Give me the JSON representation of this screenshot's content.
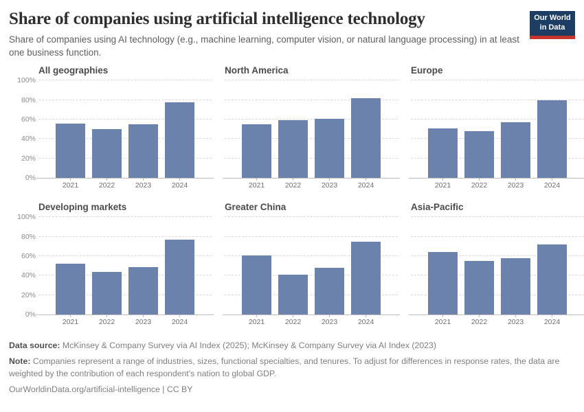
{
  "header": {
    "title": "Share of companies using artificial intelligence technology",
    "subtitle": "Share of companies using AI technology (e.g., machine learning, computer vision, or natural language processing) in at least one business function.",
    "logo": {
      "line1": "Our World",
      "line2": "in Data",
      "bg_color": "#1d3d63",
      "stripe_color": "#c5352c"
    }
  },
  "chart_data": {
    "type": "bar",
    "categories": [
      "2021",
      "2022",
      "2023",
      "2024"
    ],
    "ylim": [
      0,
      100
    ],
    "ytick_values": [
      0,
      20,
      40,
      60,
      80,
      100
    ],
    "ytick_labels": [
      "0%",
      "20%",
      "40%",
      "60%",
      "80%",
      "100%"
    ],
    "grid": true,
    "legend": "none",
    "bar_color": "#6b82ac",
    "ylabel": "",
    "xlabel": "",
    "panels": [
      {
        "title": "All geographies",
        "values": [
          56,
          50,
          55,
          78
        ]
      },
      {
        "title": "North America",
        "values": [
          55,
          59,
          61,
          82
        ]
      },
      {
        "title": "Europe",
        "values": [
          51,
          48,
          57,
          80
        ]
      },
      {
        "title": "Developing markets",
        "values": [
          52,
          44,
          49,
          77
        ]
      },
      {
        "title": "Greater China",
        "values": [
          61,
          41,
          48,
          75
        ]
      },
      {
        "title": "Asia-Pacific",
        "values": [
          64,
          55,
          58,
          72
        ]
      }
    ]
  },
  "footer": {
    "datasource_label": "Data source:",
    "datasource_text": " McKinsey & Company Survey via AI Index (2025); McKinsey & Company Survey via AI Index (2023)",
    "note_label": "Note:",
    "note_text": " Companies represent a range of industries, sizes, functional specialties, and tenures. To adjust for differences in response rates, the data are weighted by the contribution of each respondent's nation to global GDP.",
    "license": "OurWorldinData.org/artificial-intelligence | CC BY"
  }
}
